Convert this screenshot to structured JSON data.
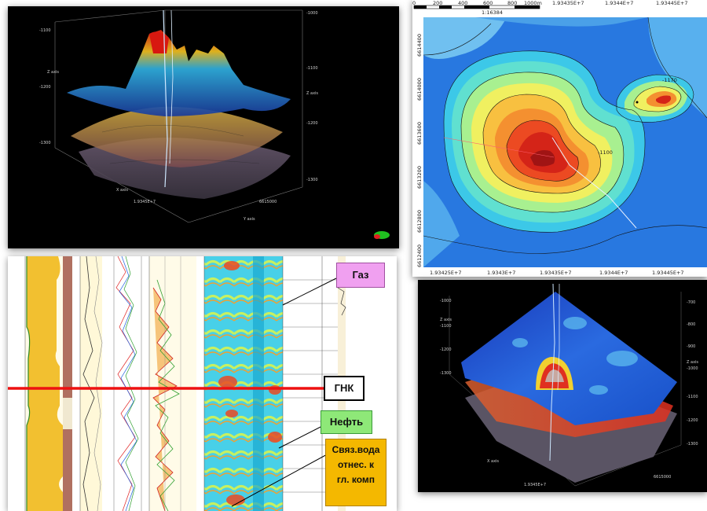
{
  "top_left_3d": {
    "z_axis_left": [
      "-1100",
      "-1200",
      "-1300"
    ],
    "z_axis_right": [
      "-1000",
      "-1100",
      "-1200",
      "-1300"
    ],
    "z_axis_title": "Z axis",
    "x_axis_title": "X axis",
    "y_axis_title": "Y axis",
    "x_tick": "1.9345E+7",
    "y_tick": "6615000"
  },
  "contour_map": {
    "scale_labels": [
      "0",
      "200",
      "400",
      "600",
      "800",
      "1000m"
    ],
    "scale_ratio": "1:16384",
    "x_ticks_top": [
      "1.93435E+7",
      "1.9344E+7",
      "1.93445E+7"
    ],
    "x_ticks_bottom": [
      "1.93425E+7",
      "1.9343E+7",
      "1.93435E+7",
      "1.9344E+7",
      "1.93445E+7"
    ],
    "y_ticks": [
      "6614400",
      "6614000",
      "6613600",
      "6613200",
      "6612800",
      "6612400"
    ],
    "contour_labels": [
      "-1100",
      "-1170"
    ]
  },
  "well_log": {
    "callouts": {
      "gas": "Газ",
      "gnk": "ГНК",
      "oil": "Нефть",
      "bound_water_line1": "Связ.вода",
      "bound_water_line2": "отнес. к",
      "bound_water_line3": "гл. комп"
    },
    "colors": {
      "gas": "#f0a0f0",
      "gnk_line": "#ee1111",
      "oil": "#8ee878",
      "water": "#f4b800"
    }
  },
  "bottom_right_3d": {
    "z_axis_left": [
      "-1000",
      "-1100",
      "-1200",
      "-1300"
    ],
    "z_axis_right": [
      "-700",
      "-800",
      "-900",
      "-1000",
      "-1100",
      "-1200",
      "-1300"
    ],
    "z_axis_title": "Z axis",
    "x_axis_title": "X axis",
    "x_tick": "1.9345E+7",
    "y_tick": "6615000"
  }
}
